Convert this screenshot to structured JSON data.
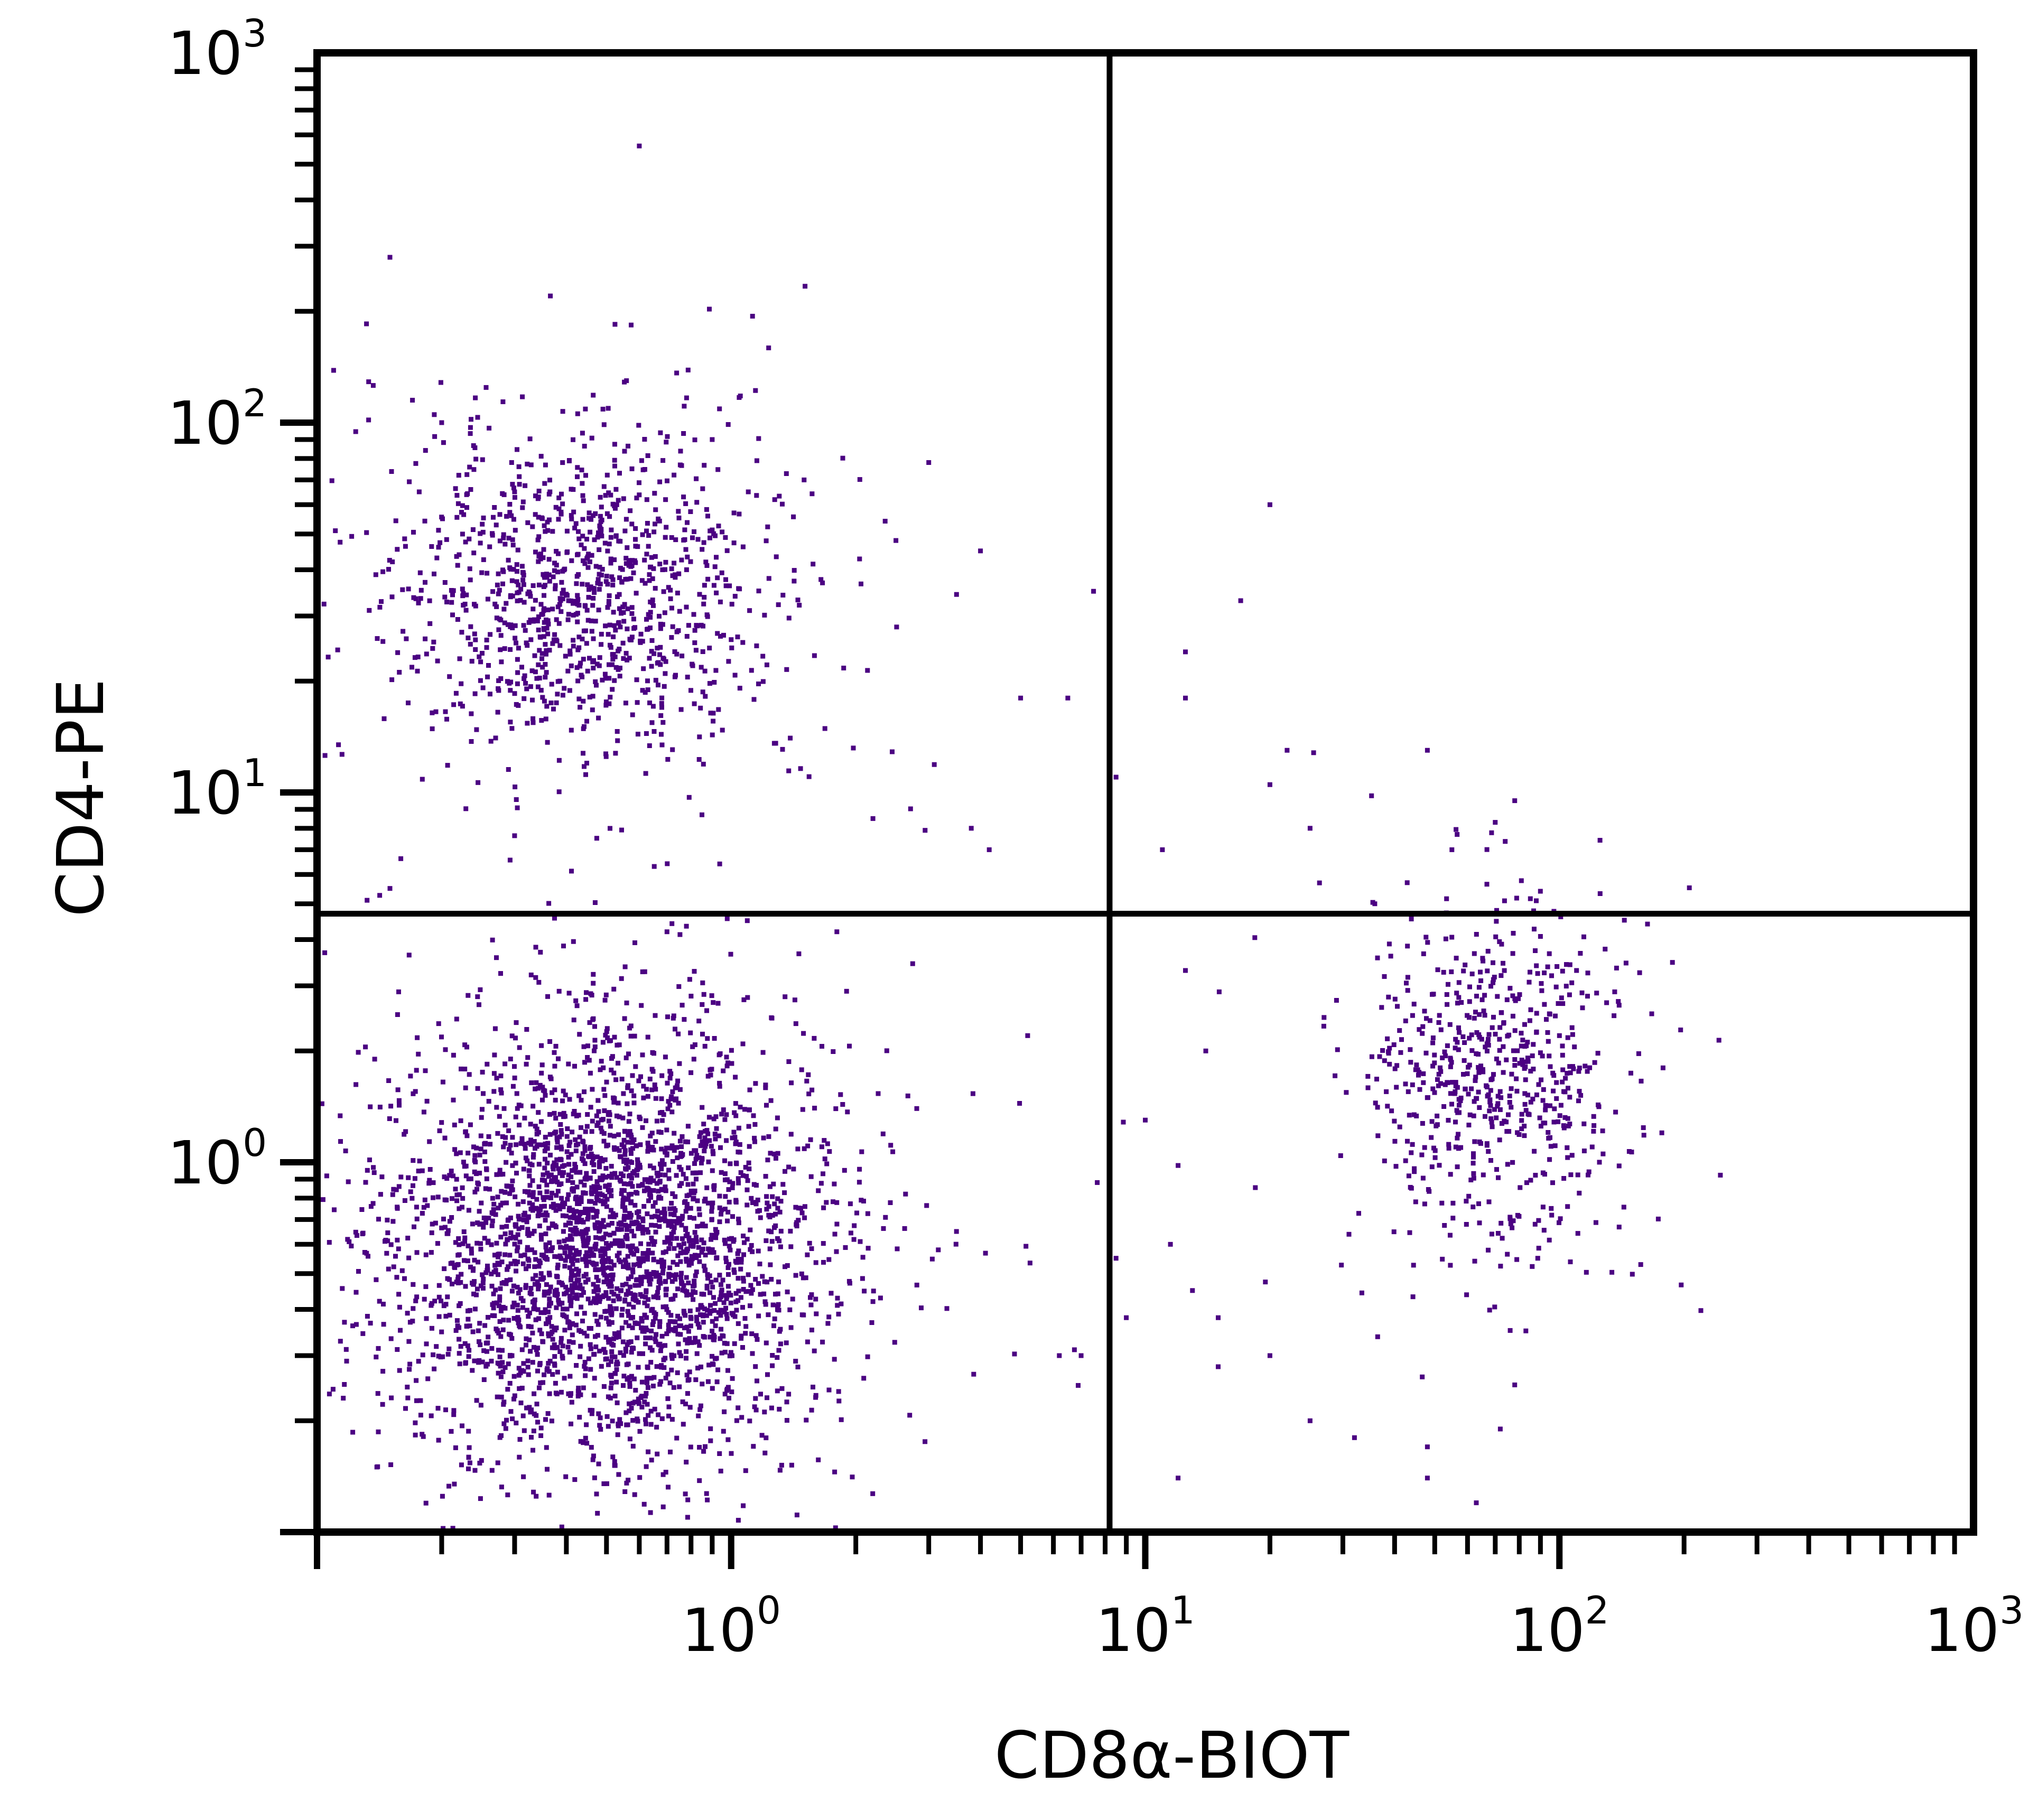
{
  "chart_data": {
    "type": "scatter",
    "title": "",
    "xlabel": "CD8α-BIOT",
    "ylabel": "CD4-PE",
    "x_scale": "log",
    "y_scale": "log",
    "xlim": [
      0.1,
      1000
    ],
    "ylim": [
      0.1,
      1000
    ],
    "grid": false,
    "legend": "none",
    "point_color": "#4b0082",
    "x_ticks": [
      {
        "value": 1,
        "base": "10",
        "exp": "0"
      },
      {
        "value": 10,
        "base": "10",
        "exp": "1"
      },
      {
        "value": 100,
        "base": "10",
        "exp": "2"
      },
      {
        "value": 1000,
        "base": "10",
        "exp": "3"
      }
    ],
    "y_ticks": [
      {
        "value": 1,
        "base": "10",
        "exp": "0"
      },
      {
        "value": 10,
        "base": "10",
        "exp": "1"
      },
      {
        "value": 100,
        "base": "10",
        "exp": "2"
      },
      {
        "value": 1000,
        "base": "10",
        "exp": "3"
      }
    ],
    "quadrant_gates": {
      "x": 8.2,
      "y": 4.7
    },
    "populations": [
      {
        "center": [
          0.5,
          0.6
        ],
        "spread": [
          0.5,
          0.55
        ],
        "count": 3200
      },
      {
        "center": [
          0.45,
          35
        ],
        "spread": [
          0.45,
          0.4
        ],
        "count": 1100
      },
      {
        "center": [
          70,
          1.7
        ],
        "spread": [
          0.3,
          0.45
        ],
        "count": 650
      }
    ],
    "outliers": [
      [
        0.6,
        560
      ],
      [
        0.15,
        280
      ],
      [
        0.17,
        115
      ],
      [
        0.2,
        100
      ],
      [
        0.9,
        90
      ],
      [
        3,
        78
      ],
      [
        0.3,
        65
      ],
      [
        0.35,
        55
      ],
      [
        1.1,
        65
      ],
      [
        1.5,
        70
      ],
      [
        2.5,
        48
      ],
      [
        4,
        45
      ],
      [
        7.5,
        35
      ],
      [
        20,
        60
      ],
      [
        17,
        33
      ],
      [
        12.5,
        24
      ],
      [
        12.5,
        18
      ],
      [
        5,
        18
      ],
      [
        6.5,
        18
      ],
      [
        8.5,
        11
      ],
      [
        22,
        13
      ],
      [
        20,
        10.5
      ],
      [
        25,
        8
      ],
      [
        11,
        7
      ],
      [
        48,
        13
      ],
      [
        70,
        8.3
      ],
      [
        78,
        9.5
      ],
      [
        55,
        7
      ],
      [
        4.2,
        7
      ],
      [
        3.8,
        8
      ],
      [
        2.2,
        8.5
      ],
      [
        0.15,
        5.5
      ],
      [
        0.1,
        4.5
      ],
      [
        0.7,
        4.2
      ],
      [
        1.8,
        4.2
      ],
      [
        12.5,
        3.3
      ],
      [
        14,
        2
      ],
      [
        10,
        1.3
      ],
      [
        12,
        0.98
      ],
      [
        11.5,
        0.6
      ],
      [
        13,
        0.45
      ],
      [
        15,
        0.38
      ],
      [
        15,
        0.28
      ],
      [
        20,
        0.3
      ],
      [
        25,
        0.2
      ],
      [
        32,
        0.18
      ],
      [
        48,
        0.17
      ],
      [
        48,
        0.14
      ],
      [
        63,
        0.12
      ],
      [
        72,
        0.19
      ],
      [
        78,
        0.25
      ],
      [
        83,
        0.35
      ],
      [
        12,
        0.14
      ],
      [
        9,
        0.38
      ],
      [
        8.5,
        0.55
      ],
      [
        7,
        0.3
      ],
      [
        6.2,
        0.3
      ],
      [
        5.2,
        2.2
      ],
      [
        3.5,
        0.65
      ],
      [
        2.2,
        0.42
      ],
      [
        1.9,
        2.9
      ],
      [
        110,
        3.3
      ],
      [
        120,
        1.1
      ],
      [
        130,
        2.7
      ],
      [
        100,
        2.2
      ],
      [
        88,
        3.4
      ]
    ]
  }
}
